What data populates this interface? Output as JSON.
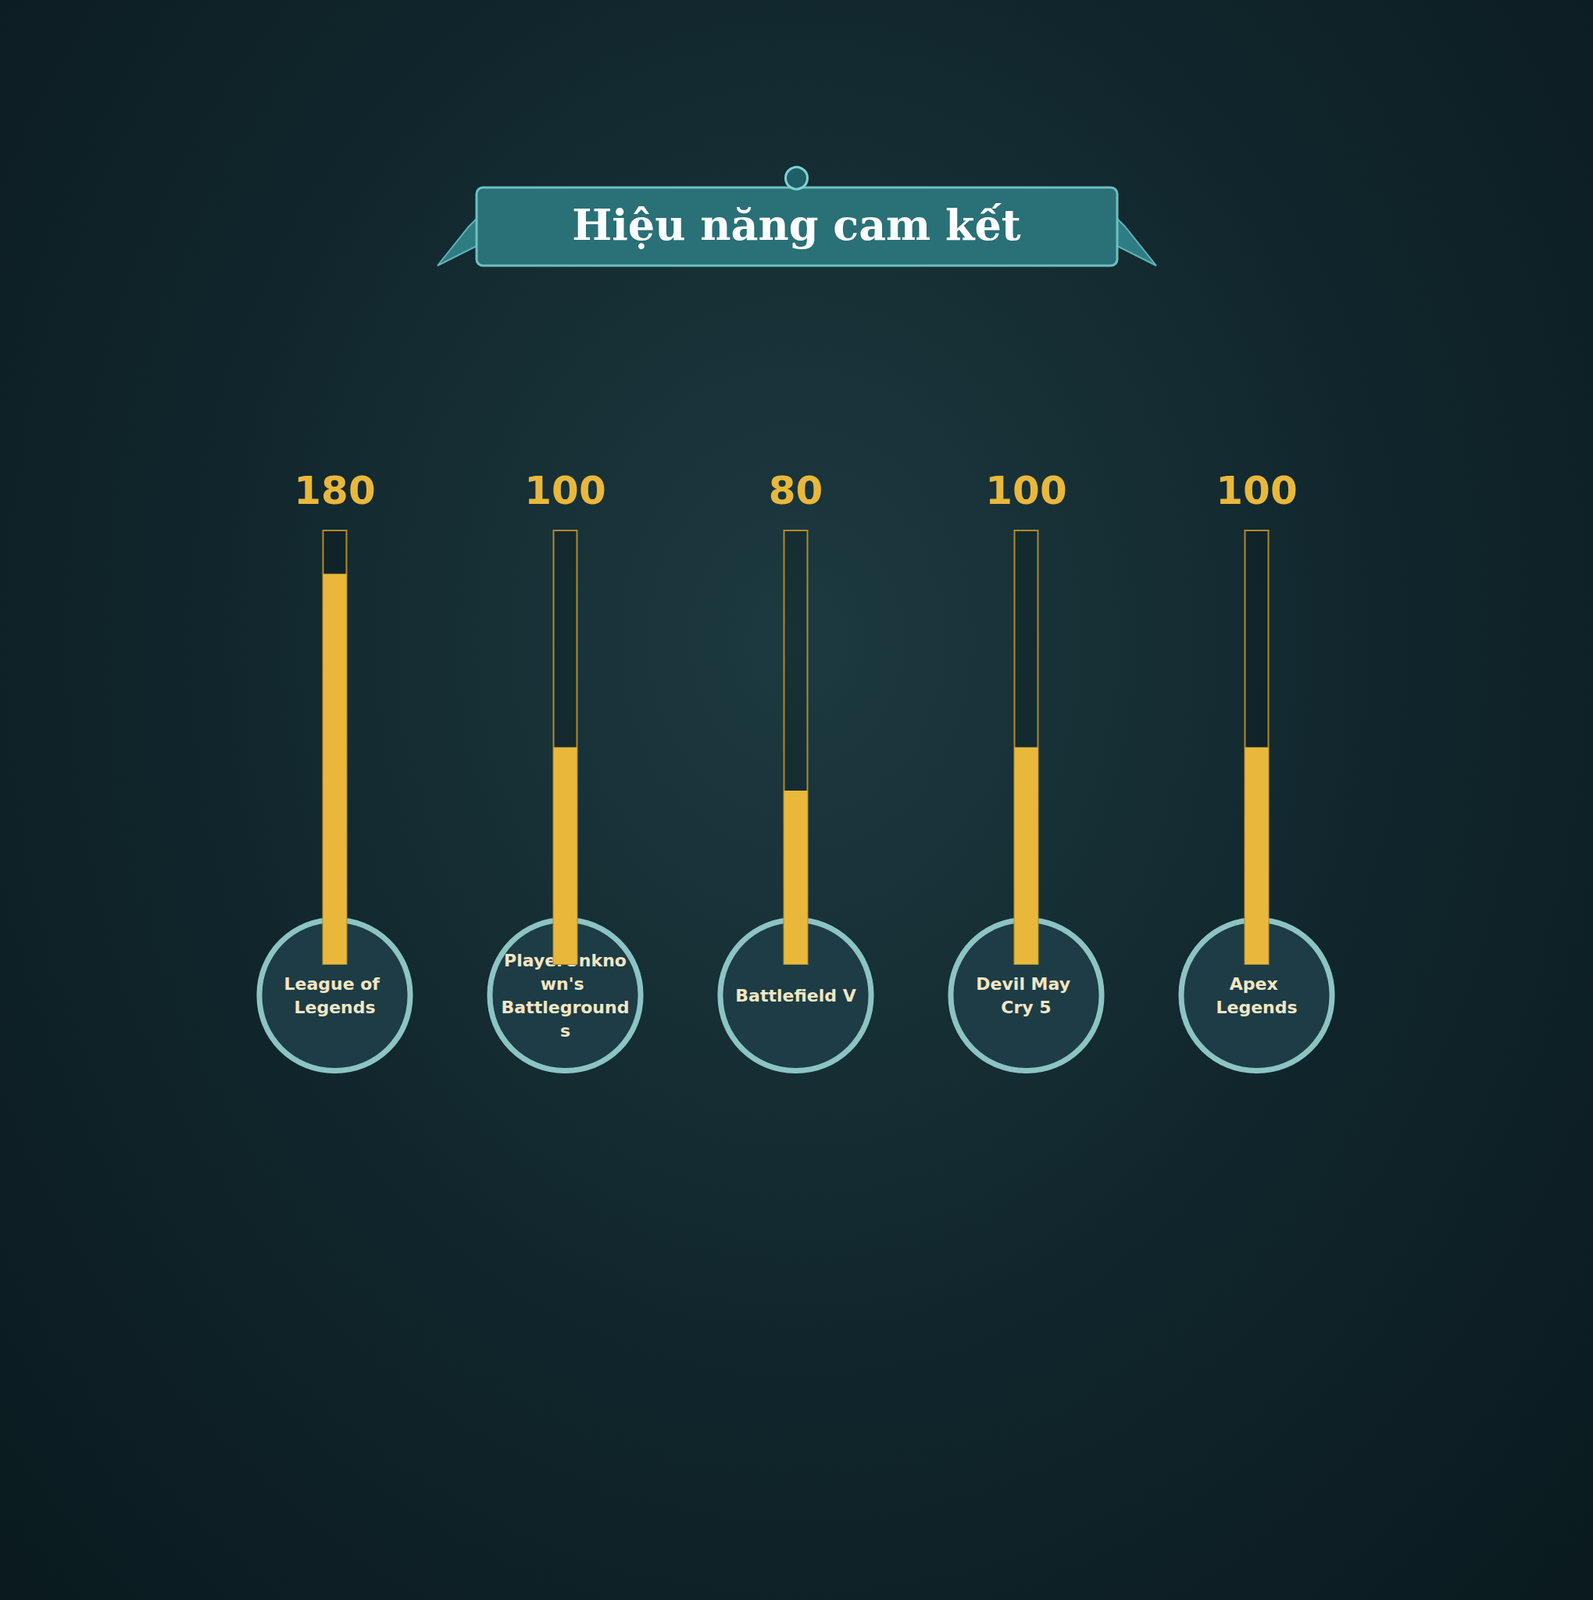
{
  "chart_data": {
    "type": "bar",
    "title": "Hiệu năng cam kết",
    "categories": [
      "League of Legends",
      "PlayerUnknown's Battlegrounds",
      "Battlefield V",
      "Devil May Cry 5",
      "Apex Legends"
    ],
    "values": [
      180,
      100,
      80,
      100,
      100
    ],
    "color": "#e9b83b",
    "ylim": [
      0,
      200
    ],
    "yticks": [
      0,
      200
    ],
    "grid": false,
    "data_labels": true,
    "tick_labels": "x"
  }
}
